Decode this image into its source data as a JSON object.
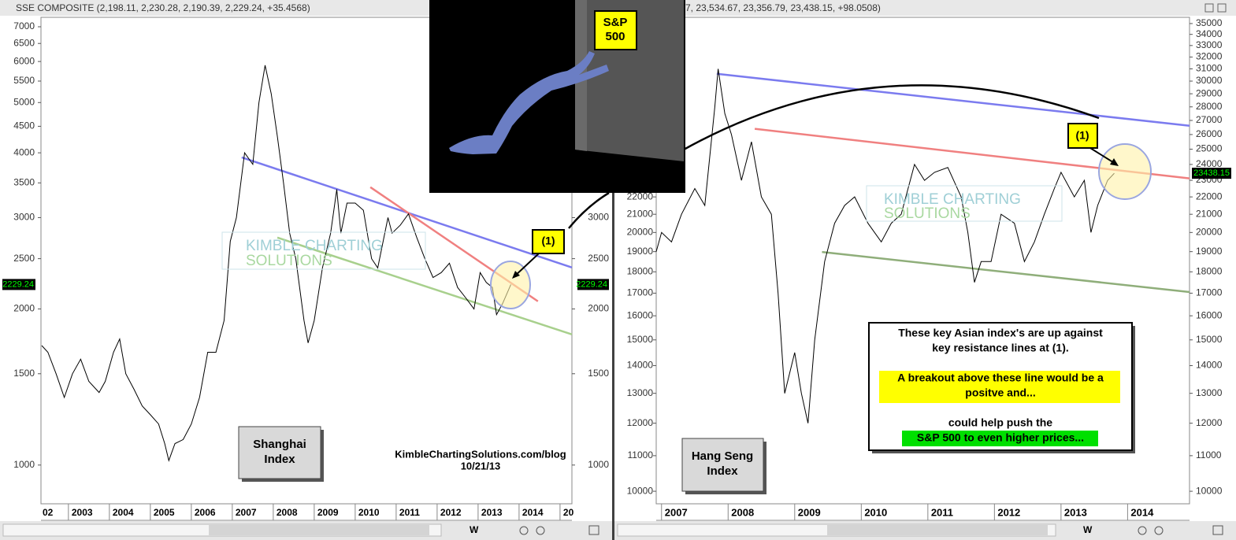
{
  "image_label": [
    "S&P",
    "500"
  ],
  "chart_data": [
    {
      "type": "line",
      "header": "SSE COMPOSITE (2,198.11, 2,230.28, 2,190.39, 2,229.24, +35.4568)",
      "log_y": true,
      "color": "#000000",
      "xlim": [
        2002.33,
        2015.29
      ],
      "ylim": [
        842,
        7300
      ],
      "xticks": [
        {
          "value": 2002,
          "label": "02"
        },
        2003,
        2004,
        2005,
        2006,
        2007,
        2008,
        2009,
        2010,
        2011,
        2012,
        2013,
        2014,
        {
          "value": 2015,
          "label": "20"
        }
      ],
      "yticks": [
        1000,
        1500,
        2000,
        2500,
        3000,
        3500,
        4000,
        4500,
        5000,
        5500,
        6000,
        6500,
        7000
      ],
      "x": [
        2002.35,
        2002.5,
        2002.7,
        2002.9,
        2003.1,
        2003.3,
        2003.5,
        2003.75,
        2003.9,
        2004.1,
        2004.25,
        2004.4,
        2004.6,
        2004.8,
        2005.0,
        2005.2,
        2005.35,
        2005.45,
        2005.6,
        2005.8,
        2006.0,
        2006.2,
        2006.4,
        2006.6,
        2006.8,
        2006.95,
        2007.1,
        2007.3,
        2007.5,
        2007.65,
        2007.8,
        2007.95,
        2008.1,
        2008.25,
        2008.4,
        2008.55,
        2008.75,
        2008.85,
        2009.0,
        2009.2,
        2009.4,
        2009.55,
        2009.65,
        2009.8,
        2010.0,
        2010.2,
        2010.4,
        2010.55,
        2010.8,
        2010.9,
        2011.1,
        2011.3,
        2011.5,
        2011.7,
        2011.9,
        2012.1,
        2012.3,
        2012.5,
        2012.7,
        2012.9,
        2013.05,
        2013.2,
        2013.35,
        2013.45,
        2013.6,
        2013.8
      ],
      "values": [
        1700,
        1650,
        1500,
        1350,
        1500,
        1600,
        1450,
        1380,
        1450,
        1650,
        1750,
        1500,
        1400,
        1300,
        1250,
        1200,
        1100,
        1020,
        1100,
        1120,
        1200,
        1350,
        1650,
        1650,
        1900,
        2700,
        3000,
        4000,
        3800,
        5000,
        5900,
        5200,
        4300,
        3500,
        2800,
        2500,
        1900,
        1720,
        1900,
        2400,
        2800,
        3400,
        2800,
        3200,
        3200,
        3100,
        2500,
        2400,
        3000,
        2800,
        2900,
        3050,
        2750,
        2500,
        2300,
        2350,
        2450,
        2200,
        2100,
        2000,
        2350,
        2250,
        2200,
        1950,
        2050,
        2229.24
      ],
      "trendlines": [
        {
          "color": "#7b7bef",
          "x": [
            2007.23,
            2015.29
          ],
          "y": [
            3920,
            2404
          ]
        },
        {
          "color": "#f08080",
          "x": [
            2010.37,
            2014.46
          ],
          "y": [
            3434,
            2069
          ]
        },
        {
          "color": "#a8d08d",
          "x": [
            2008.1,
            2015.29
          ],
          "y": [
            2745,
            1786
          ]
        }
      ],
      "label_box": [
        "Shanghai",
        "Index"
      ],
      "callout": "(1)",
      "watermark": [
        "KIMBLE CHARTING",
        "SOLUTIONS"
      ],
      "source": "KimbleChartingSolutions.com/blog",
      "date": "10/21/13",
      "toolbar_label": "W"
    },
    {
      "type": "line",
      "header": "7, 23,534.67, 23,356.79, 23,438.15, +98.0508)",
      "log_y": true,
      "color": "#000000",
      "xlim": [
        2006.92,
        2014.93
      ],
      "ylim": [
        9670,
        35590
      ],
      "xticks": [
        2007,
        2008,
        2009,
        2010,
        2011,
        2012,
        2013,
        2014
      ],
      "yticks": [
        10000,
        11000,
        12000,
        13000,
        14000,
        15000,
        16000,
        17000,
        18000,
        19000,
        20000,
        21000,
        22000,
        23000,
        24000,
        25000,
        26000,
        27000,
        28000,
        29000,
        30000,
        31000,
        32000,
        33000,
        34000,
        35000
      ],
      "x": [
        2006.92,
        2007.0,
        2007.15,
        2007.3,
        2007.5,
        2007.65,
        2007.8,
        2007.85,
        2007.95,
        2008.05,
        2008.2,
        2008.35,
        2008.5,
        2008.65,
        2008.75,
        2008.85,
        2009.0,
        2009.1,
        2009.2,
        2009.3,
        2009.45,
        2009.6,
        2009.75,
        2009.9,
        2010.1,
        2010.3,
        2010.45,
        2010.6,
        2010.8,
        2010.95,
        2011.1,
        2011.3,
        2011.5,
        2011.6,
        2011.7,
        2011.8,
        2011.95,
        2012.1,
        2012.3,
        2012.45,
        2012.6,
        2012.75,
        2012.9,
        2013.0,
        2013.2,
        2013.35,
        2013.45,
        2013.55,
        2013.7,
        2013.8
      ],
      "values": [
        19000,
        20000,
        19500,
        21000,
        22500,
        21500,
        28000,
        31000,
        27500,
        26000,
        23000,
        25500,
        22000,
        21000,
        17000,
        13000,
        14500,
        13000,
        12000,
        15000,
        18500,
        20500,
        21500,
        22000,
        20500,
        19500,
        20500,
        21000,
        24000,
        23000,
        23500,
        23800,
        22000,
        20000,
        17500,
        18500,
        18500,
        21000,
        20500,
        18500,
        19500,
        21000,
        22500,
        23500,
        22000,
        23000,
        20000,
        21500,
        23000,
        23438.15
      ],
      "trendlines": [
        {
          "color": "#7b7bef",
          "x": [
            2007.83,
            2014.93
          ],
          "y": [
            30590,
            26620
          ]
        },
        {
          "color": "#f08080",
          "x": [
            2008.4,
            2014.93
          ],
          "y": [
            26400,
            23120
          ]
        },
        {
          "color": "#8fae7a",
          "x": [
            2009.41,
            2014.93
          ],
          "y": [
            18980,
            17050
          ]
        }
      ],
      "label_box": [
        "Hang Seng",
        "Index"
      ],
      "callout": "(1)",
      "watermark": [
        "KIMBLE CHARTING",
        "SOLUTIONS"
      ],
      "note": [
        "These key Asian index's are up against",
        "key resistance lines at (1).",
        "A breakout above these line would be a",
        "positve and...",
        "could help push the",
        "S&P 500 to even higher prices..."
      ],
      "toolbar_label": "W"
    }
  ]
}
